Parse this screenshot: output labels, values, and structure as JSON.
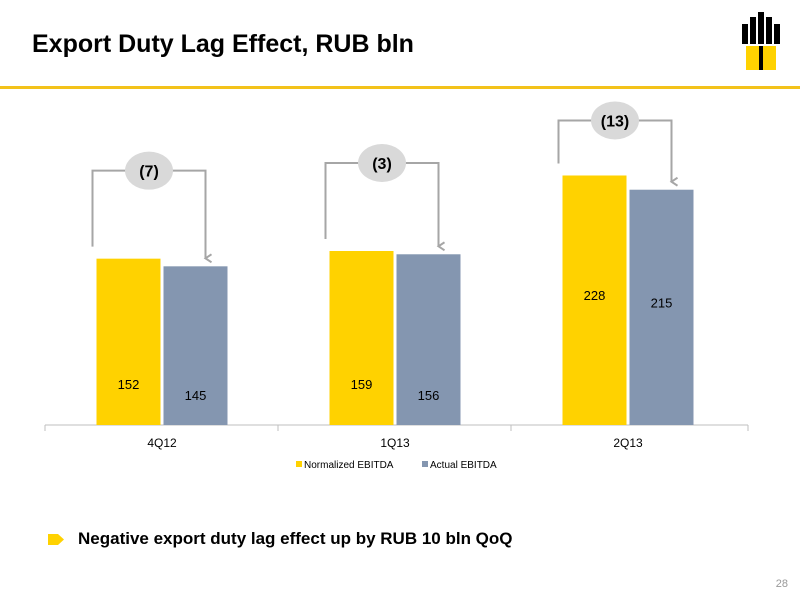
{
  "slide": {
    "title": "Export Duty Lag Effect, RUB bln",
    "bullet": "Negative export duty lag effect up by RUB 10 bln QoQ",
    "page_number": "28",
    "accent_color": "#FFD200",
    "logo_icon": "rosneft-logo-icon",
    "bullet_icon": "arrow-bullet-icon"
  },
  "chart_data": {
    "type": "bar",
    "title": "Export Duty Lag Effect, RUB bln",
    "categories": [
      "4Q12",
      "1Q13",
      "2Q13"
    ],
    "series": [
      {
        "name": "Normalized EBITDA",
        "values": [
          152,
          159,
          228
        ],
        "color": "#FFD200"
      },
      {
        "name": "Actual EBITDA",
        "values": [
          145,
          156,
          215
        ],
        "color": "#8496B0"
      }
    ],
    "annotations": [
      "(7)",
      "(3)",
      "(13)"
    ],
    "ylim": [
      0,
      265
    ],
    "grid": false,
    "legend": "bottom",
    "xlabel": "",
    "ylabel": ""
  }
}
